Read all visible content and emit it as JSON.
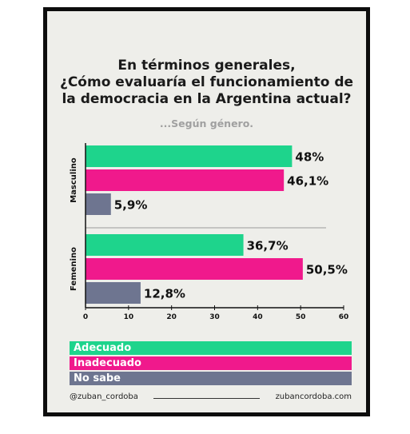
{
  "title_lines": [
    "En términos generales,",
    "¿Cómo evaluaría el funcionamiento de",
    "la democracia en la Argentina actual?"
  ],
  "subtitle": "...Según género.",
  "chart_data": {
    "type": "bar",
    "orientation": "horizontal",
    "categories": [
      "Masculino",
      "Femenino"
    ],
    "series": [
      {
        "name": "Adecuado",
        "values": [
          48,
          36.7
        ],
        "labels": [
          "48%",
          "36,7%"
        ],
        "color": "#1ed48c"
      },
      {
        "name": "Inadecuado",
        "values": [
          46.1,
          50.5
        ],
        "labels": [
          "46,1%",
          "50,5%"
        ],
        "color": "#f0198c"
      },
      {
        "name": "No sabe",
        "values": [
          5.9,
          12.8
        ],
        "labels": [
          "5,9%",
          "12,8%"
        ],
        "color": "#6e7590"
      }
    ],
    "xlim": [
      0,
      60
    ],
    "xticks": [
      "0",
      "10",
      "20",
      "30",
      "40",
      "50",
      "60"
    ],
    "grid": false,
    "legend": "bottom"
  },
  "footer": {
    "handle": "@zuban_cordoba",
    "site": "zubancordoba.com"
  }
}
